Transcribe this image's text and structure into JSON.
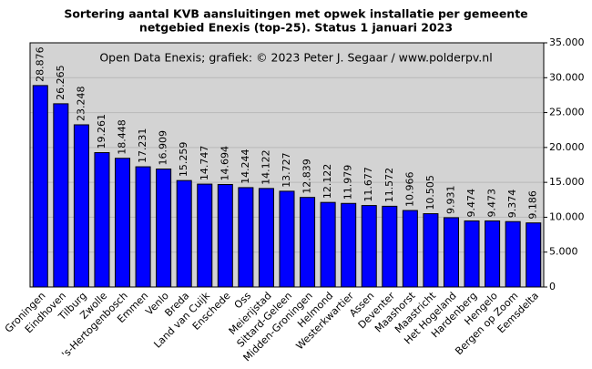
{
  "chart_data": {
    "type": "bar",
    "title": [
      "Sortering aantal KVB aansluitingen met opwek installatie per gemeente",
      "netgebied Enexis (top-25). Status 1 januari 2023"
    ],
    "annotation": "Open Data Enexis;  grafiek:  © 2023 Peter J. Segaar / www.polderpv.nl",
    "categories": [
      "Groningen",
      "Eindhoven",
      "Tilburg",
      "Zwolle",
      "'s-Hertogenbosch",
      "Emmen",
      "Venlo",
      "Breda",
      "Land van Cuijk",
      "Enschede",
      "Oss",
      "Meierijstad",
      "Sittard-Geleen",
      "Midden-Groningen",
      "Helmond",
      "Westerkwartier",
      "Assen",
      "Deventer",
      "Maashorst",
      "Maastricht",
      "Het Hogeland",
      "Hardenberg",
      "Hengelo",
      "Bergen op Zoom",
      "Eemsdelta"
    ],
    "values": [
      28876,
      26265,
      23248,
      19261,
      18448,
      17231,
      16909,
      15259,
      14747,
      14694,
      14244,
      14122,
      13727,
      12839,
      12122,
      11979,
      11677,
      11572,
      10966,
      10505,
      9931,
      9474,
      9473,
      9374,
      9186
    ],
    "value_labels": [
      "28.876",
      "26.265",
      "23.248",
      "19.261",
      "18.448",
      "17.231",
      "16.909",
      "15.259",
      "14.747",
      "14.694",
      "14.244",
      "14.122",
      "13.727",
      "12.839",
      "12.122",
      "11.979",
      "11.677",
      "11.572",
      "10.966",
      "10.505",
      "9.931",
      "9.474",
      "9.473",
      "9.374",
      "9.186"
    ],
    "color": "#0000ff",
    "ylim": [
      0,
      35000
    ],
    "yticks": [
      0,
      {
        "value": 5000,
        "label": "5.000"
      },
      {
        "value": 10000,
        "label": "10.000"
      },
      {
        "value": 15000,
        "label": "15.000"
      },
      {
        "value": 20000,
        "label": "20.000"
      },
      {
        "value": 25000,
        "label": "25.000"
      },
      {
        "value": 30000,
        "label": "30.000"
      },
      {
        "value": 35000,
        "label": "35.000"
      }
    ],
    "grid": true
  }
}
